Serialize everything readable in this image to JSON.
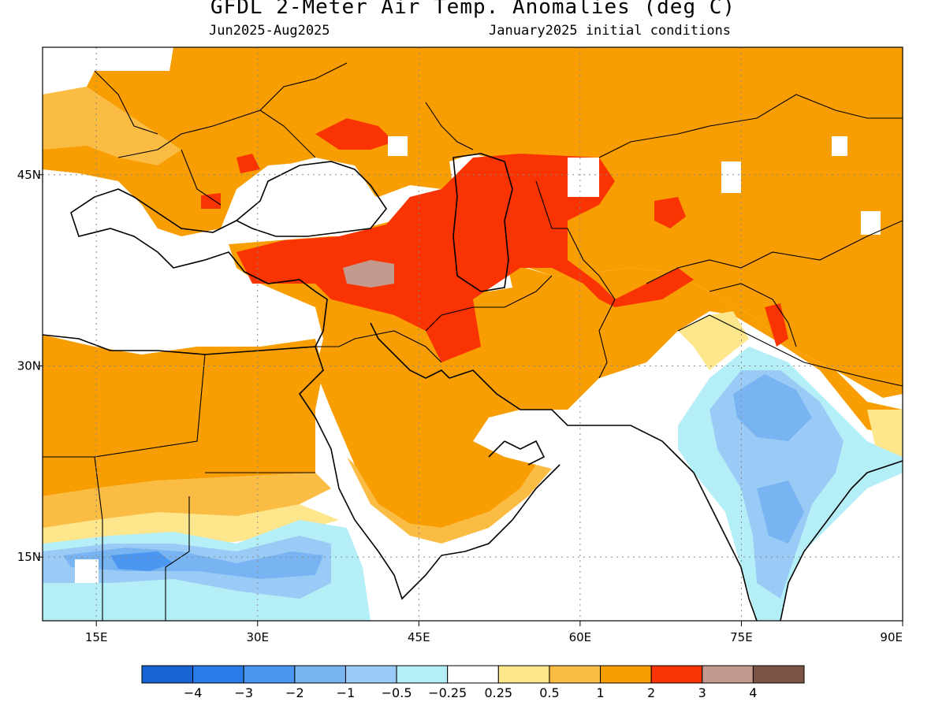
{
  "header": {
    "title": "GFDL 2-Meter Air Temp. Anomalies (deg C)",
    "period": "Jun2025-Aug2025",
    "init": "January2025 initial conditions"
  },
  "map": {
    "lon_range": [
      10,
      90
    ],
    "lat_range": [
      10,
      55
    ],
    "x_ticks": [
      {
        "lon": 15,
        "label": "15E"
      },
      {
        "lon": 30,
        "label": "30E"
      },
      {
        "lon": 45,
        "label": "45E"
      },
      {
        "lon": 60,
        "label": "60E"
      },
      {
        "lon": 75,
        "label": "75E"
      },
      {
        "lon": 90,
        "label": "90E"
      }
    ],
    "y_ticks": [
      {
        "lat": 15,
        "label": "15N"
      },
      {
        "lat": 30,
        "label": "30N"
      },
      {
        "lat": 45,
        "label": "45N"
      }
    ],
    "gridlines": true
  },
  "colorbar": {
    "colors": [
      "#1764d2",
      "#2a7ce8",
      "#4a96f0",
      "#79b4f2",
      "#9acbf6",
      "#b4eef6",
      "#ffffff",
      "#fde68b",
      "#fbbc44",
      "#f89e02",
      "#f93302",
      "#c49a8e",
      "#7b5446"
    ],
    "labels": [
      "-4",
      "-3",
      "-2",
      "-1",
      "-0.5",
      "-0.25",
      "0.25",
      "0.5",
      "1",
      "2",
      "3",
      "4"
    ]
  }
}
